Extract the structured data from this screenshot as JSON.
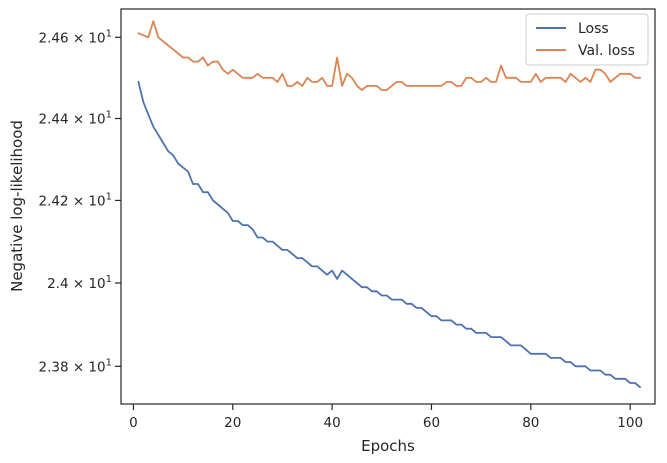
{
  "chart_data": {
    "type": "line",
    "xlabel": "Epochs",
    "ylabel": "Negative log-likelihood",
    "xlim": [
      -2.5,
      105
    ],
    "ylim": [
      23.71,
      24.67
    ],
    "x_ticks": [
      0,
      20,
      40,
      60,
      80,
      100
    ],
    "y_ticks": [
      {
        "value": 23.8,
        "mantissa": "2.38",
        "base": "10",
        "exponent": "1"
      },
      {
        "value": 24.0,
        "mantissa": "2.4",
        "base": "10",
        "exponent": "1"
      },
      {
        "value": 24.2,
        "mantissa": "2.42",
        "base": "10",
        "exponent": "1"
      },
      {
        "value": 24.4,
        "mantissa": "2.44",
        "base": "10",
        "exponent": "1"
      },
      {
        "value": 24.6,
        "mantissa": "2.46",
        "base": "10",
        "exponent": "1"
      }
    ],
    "y_scale": "log",
    "grid": false,
    "legend": {
      "position": "top-right"
    },
    "series": [
      {
        "name": "Loss",
        "color": "#4c72b0",
        "x_start": 1,
        "values": [
          24.49,
          24.44,
          24.41,
          24.38,
          24.36,
          24.34,
          24.32,
          24.31,
          24.29,
          24.28,
          24.27,
          24.24,
          24.24,
          24.22,
          24.22,
          24.2,
          24.19,
          24.18,
          24.17,
          24.15,
          24.15,
          24.14,
          24.14,
          24.13,
          24.11,
          24.11,
          24.1,
          24.1,
          24.09,
          24.08,
          24.08,
          24.07,
          24.06,
          24.06,
          24.05,
          24.04,
          24.04,
          24.03,
          24.02,
          24.03,
          24.01,
          24.03,
          24.02,
          24.01,
          24.0,
          23.99,
          23.99,
          23.98,
          23.98,
          23.97,
          23.97,
          23.96,
          23.96,
          23.96,
          23.95,
          23.95,
          23.94,
          23.94,
          23.93,
          23.92,
          23.92,
          23.91,
          23.91,
          23.91,
          23.9,
          23.9,
          23.89,
          23.89,
          23.88,
          23.88,
          23.88,
          23.87,
          23.87,
          23.87,
          23.86,
          23.85,
          23.85,
          23.85,
          23.84,
          23.83,
          23.83,
          23.83,
          23.83,
          23.82,
          23.82,
          23.82,
          23.81,
          23.81,
          23.8,
          23.8,
          23.8,
          23.79,
          23.79,
          23.79,
          23.78,
          23.78,
          23.77,
          23.77,
          23.77,
          23.76,
          23.76,
          23.75
        ]
      },
      {
        "name": "Val. loss",
        "color": "#dd8452",
        "x_start": 1,
        "values": [
          24.61,
          24.605,
          24.6,
          24.64,
          24.6,
          24.59,
          24.58,
          24.57,
          24.56,
          24.55,
          24.55,
          24.54,
          24.54,
          24.55,
          24.53,
          24.54,
          24.54,
          24.52,
          24.51,
          24.52,
          24.51,
          24.5,
          24.5,
          24.5,
          24.51,
          24.5,
          24.5,
          24.5,
          24.49,
          24.51,
          24.48,
          24.48,
          24.49,
          24.48,
          24.5,
          24.49,
          24.49,
          24.5,
          24.48,
          24.48,
          24.55,
          24.48,
          24.51,
          24.5,
          24.48,
          24.47,
          24.48,
          24.48,
          24.48,
          24.47,
          24.47,
          24.48,
          24.49,
          24.49,
          24.48,
          24.48,
          24.48,
          24.48,
          24.48,
          24.48,
          24.48,
          24.48,
          24.49,
          24.49,
          24.48,
          24.48,
          24.5,
          24.5,
          24.49,
          24.49,
          24.5,
          24.49,
          24.49,
          24.53,
          24.5,
          24.5,
          24.5,
          24.49,
          24.49,
          24.49,
          24.51,
          24.49,
          24.5,
          24.5,
          24.5,
          24.5,
          24.49,
          24.51,
          24.5,
          24.49,
          24.5,
          24.49,
          24.52,
          24.52,
          24.51,
          24.49,
          24.5,
          24.51,
          24.51,
          24.51,
          24.5,
          24.5
        ]
      }
    ]
  }
}
